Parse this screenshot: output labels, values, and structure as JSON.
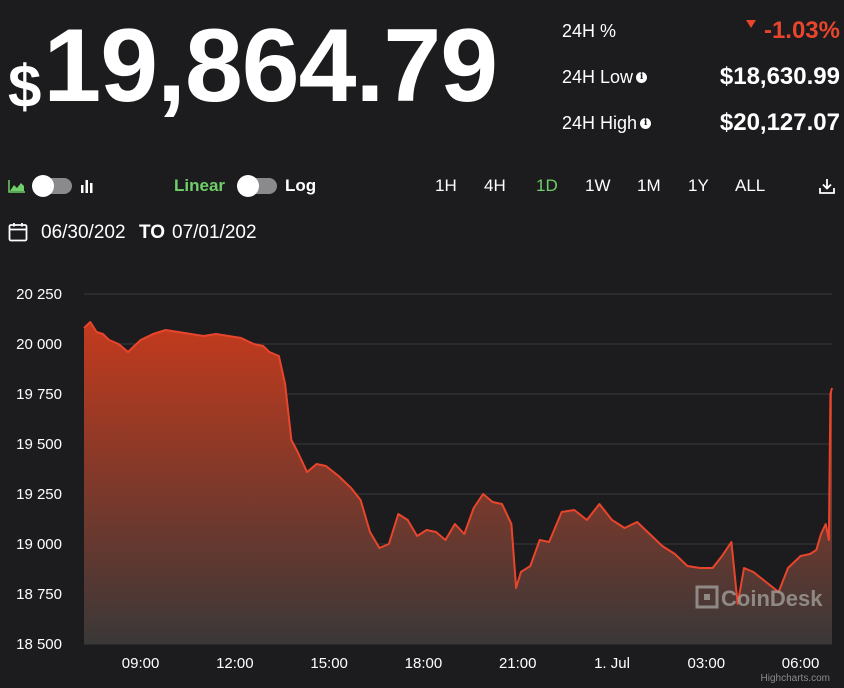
{
  "header": {
    "currency_symbol": "$",
    "price": "19,864.79"
  },
  "stats": {
    "change_label": "24H %",
    "change_value": "-1.03%",
    "low_label": "24H Low",
    "low_value": "$18,630.99",
    "high_label": "24H High",
    "high_value": "$20,127.07",
    "info_glyph": "i"
  },
  "controls": {
    "chart_type_icons": [
      "area-chart-icon",
      "bar-chart-icon"
    ],
    "scale_linear": "Linear",
    "scale_log": "Log",
    "ranges": [
      "1H",
      "4H",
      "1D",
      "1W",
      "1M",
      "1Y",
      "ALL"
    ],
    "active_range": "1D",
    "download_icon": "download-icon"
  },
  "date_range": {
    "from": "06/30/202",
    "to_label": "TO",
    "to": "07/01/202"
  },
  "colors": {
    "background": "#1c1b1d",
    "line": "#e8452c",
    "fill_top": "#c43a1d",
    "fill_bottom": "#3a3838",
    "accent_green": "#6fcf6a",
    "negative": "#e8452c",
    "grid": "#3a3a3c"
  },
  "chart_data": {
    "type": "area",
    "title": "",
    "xlabel": "",
    "ylabel": "",
    "ylim": [
      18500,
      20250
    ],
    "y_ticks": [
      "20 250",
      "20 000",
      "19 750",
      "19 500",
      "19 250",
      "19 000",
      "18 750",
      "18 500"
    ],
    "y_tick_values": [
      20250,
      20000,
      19750,
      19500,
      19250,
      19000,
      18750,
      18500
    ],
    "x_ticks": [
      "09:00",
      "12:00",
      "15:00",
      "18:00",
      "21:00",
      "1. Jul",
      "03:00",
      "06:00"
    ],
    "x_tick_hours": [
      9,
      12,
      15,
      18,
      21,
      24,
      27,
      30
    ],
    "xlim_hours": [
      7.2,
      31.0
    ],
    "series": [
      {
        "x_hours": [
          7.2,
          7.4,
          7.6,
          7.8,
          8.0,
          8.3,
          8.6,
          9.0,
          9.4,
          9.8,
          10.2,
          10.6,
          11.0,
          11.4,
          11.8,
          12.2,
          12.6,
          12.9,
          13.1,
          13.4,
          13.6,
          13.8,
          14.0,
          14.3,
          14.6,
          14.9,
          15.3,
          15.7,
          16.0,
          16.3,
          16.6,
          16.9,
          17.2,
          17.5,
          17.8,
          18.1,
          18.4,
          18.7,
          19.0,
          19.3,
          19.6,
          19.9,
          20.2,
          20.5,
          20.8,
          20.95,
          21.1,
          21.4,
          21.7,
          22.0,
          22.4,
          22.8,
          23.2,
          23.6,
          24.0,
          24.4,
          24.8,
          25.2,
          25.6,
          26.0,
          26.4,
          26.8,
          27.2,
          27.5,
          27.8,
          28.0,
          28.2,
          28.5,
          28.9,
          29.3,
          29.6,
          30.0,
          30.3,
          30.5,
          30.65,
          30.8,
          30.9,
          30.95,
          31.0
        ],
        "values": [
          20080,
          20110,
          20060,
          20050,
          20020,
          20000,
          19960,
          20020,
          20050,
          20070,
          20060,
          20050,
          20040,
          20050,
          20040,
          20030,
          20000,
          19990,
          19960,
          19940,
          19800,
          19520,
          19460,
          19360,
          19400,
          19390,
          19340,
          19280,
          19220,
          19060,
          18980,
          19000,
          19150,
          19120,
          19040,
          19070,
          19060,
          19020,
          19100,
          19050,
          19180,
          19250,
          19210,
          19200,
          19100,
          18780,
          18860,
          18890,
          19020,
          19010,
          19160,
          19170,
          19120,
          19200,
          19120,
          19080,
          19110,
          19050,
          18990,
          18950,
          18890,
          18880,
          18880,
          18940,
          19010,
          18700,
          18880,
          18860,
          18810,
          18760,
          18880,
          18940,
          18950,
          18970,
          19050,
          19100,
          19020,
          19750,
          19780
        ]
      }
    ]
  },
  "watermark": "CoinDesk",
  "credits": "Highcharts.com"
}
